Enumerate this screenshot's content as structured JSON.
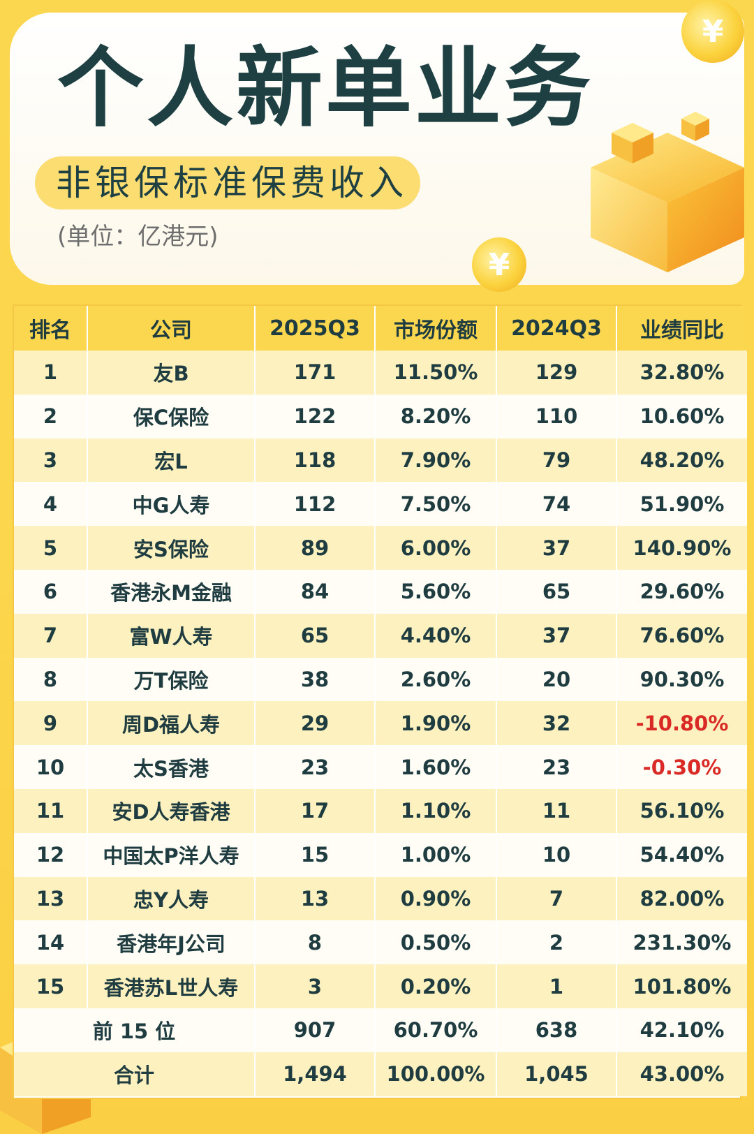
{
  "header": {
    "title": "个人新单业务",
    "subtitle": "非银保标准保费收入",
    "unit": "(单位：亿港元)"
  },
  "decor": {
    "coin_symbol": "¥",
    "coin_icon": "yen-coin-icon",
    "cube_icon": "gold-cube-icon"
  },
  "colors": {
    "title": "#1e4043",
    "header_bg": "#fbd64f",
    "row_stripe": "#fdf1c0",
    "negative": "#d92a25"
  },
  "table": {
    "columns": [
      "排名",
      "公司",
      "2025Q3",
      "市场份额",
      "2024Q3",
      "业绩同比"
    ],
    "rows": [
      {
        "rank": "1",
        "company": "友B",
        "y2025": "171",
        "share": "11.50%",
        "y2024": "129",
        "yoy": "32.80%"
      },
      {
        "rank": "2",
        "company": "保C保险",
        "y2025": "122",
        "share": "8.20%",
        "y2024": "110",
        "yoy": "10.60%"
      },
      {
        "rank": "3",
        "company": "宏L",
        "y2025": "118",
        "share": "7.90%",
        "y2024": "79",
        "yoy": "48.20%"
      },
      {
        "rank": "4",
        "company": "中G人寿",
        "y2025": "112",
        "share": "7.50%",
        "y2024": "74",
        "yoy": "51.90%"
      },
      {
        "rank": "5",
        "company": "安S保险",
        "y2025": "89",
        "share": "6.00%",
        "y2024": "37",
        "yoy": "140.90%"
      },
      {
        "rank": "6",
        "company": "香港永M金融",
        "y2025": "84",
        "share": "5.60%",
        "y2024": "65",
        "yoy": "29.60%"
      },
      {
        "rank": "7",
        "company": "富W人寿",
        "y2025": "65",
        "share": "4.40%",
        "y2024": "37",
        "yoy": "76.60%"
      },
      {
        "rank": "8",
        "company": "万T保险",
        "y2025": "38",
        "share": "2.60%",
        "y2024": "20",
        "yoy": "90.30%"
      },
      {
        "rank": "9",
        "company": "周D福人寿",
        "y2025": "29",
        "share": "1.90%",
        "y2024": "32",
        "yoy": "-10.80%"
      },
      {
        "rank": "10",
        "company": "太S香港",
        "y2025": "23",
        "share": "1.60%",
        "y2024": "23",
        "yoy": "-0.30%"
      },
      {
        "rank": "11",
        "company": "安D人寿香港",
        "y2025": "17",
        "share": "1.10%",
        "y2024": "11",
        "yoy": "56.10%"
      },
      {
        "rank": "12",
        "company": "中国太P洋人寿",
        "y2025": "15",
        "share": "1.00%",
        "y2024": "10",
        "yoy": "54.40%"
      },
      {
        "rank": "13",
        "company": "忠Y人寿",
        "y2025": "13",
        "share": "0.90%",
        "y2024": "7",
        "yoy": "82.00%"
      },
      {
        "rank": "14",
        "company": "香港年J公司",
        "y2025": "8",
        "share": "0.50%",
        "y2024": "2",
        "yoy": "231.30%"
      },
      {
        "rank": "15",
        "company": "香港苏L世人寿",
        "y2025": "3",
        "share": "0.20%",
        "y2024": "1",
        "yoy": "101.80%"
      }
    ],
    "top15": {
      "label": "前 15 位",
      "y2025": "907",
      "share": "60.70%",
      "y2024": "638",
      "yoy": "42.10%"
    },
    "total": {
      "label": "合计",
      "y2025": "1,494",
      "share": "100.00%",
      "y2024": "1,045",
      "yoy": "43.00%"
    }
  }
}
